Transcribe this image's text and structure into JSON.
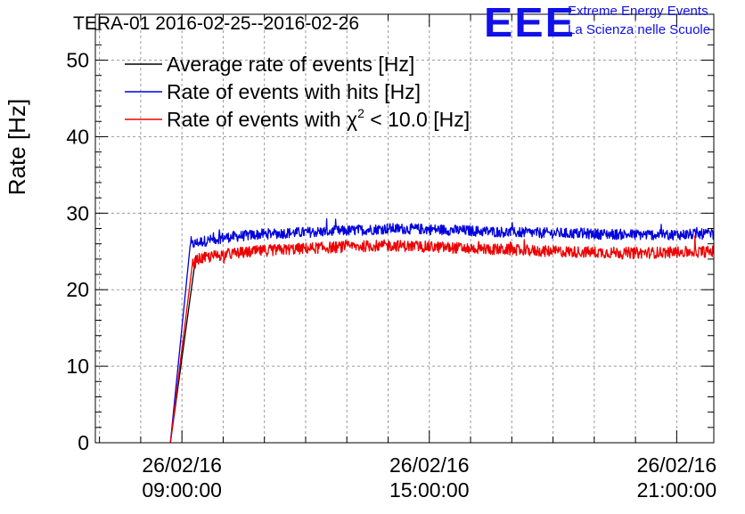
{
  "chart_data": {
    "type": "line",
    "title": "TERA-01 2016-02-25--2016-02-26",
    "ylabel": "Rate [Hz]",
    "xlabel": "",
    "xlim_hours": [
      6.9,
      21.9
    ],
    "ylim": [
      0,
      56
    ],
    "y_ticks": [
      0,
      10,
      20,
      30,
      40,
      50
    ],
    "y_tick_labels": [
      "0",
      "10",
      "20",
      "30",
      "40",
      "50"
    ],
    "x_ticks": [
      {
        "hours": 9,
        "date": "26/02/16",
        "time": "09:00:00"
      },
      {
        "hours": 15,
        "date": "26/02/16",
        "time": "15:00:00"
      },
      {
        "hours": 21,
        "date": "26/02/16",
        "time": "21:00:00"
      }
    ],
    "grid": true,
    "legend_position": "top-left",
    "series": [
      {
        "name": "Average rate of events [Hz]",
        "color": "#000000",
        "x_hours": [
          8.72,
          9.34
        ],
        "values": [
          0,
          24.5
        ]
      },
      {
        "name": "Rate of events with hits [Hz]",
        "color": "#0000dd",
        "x_hours": [
          8.72,
          9.2,
          9.4,
          10,
          11,
          12,
          13,
          14,
          15,
          16,
          17,
          18,
          19,
          20,
          21,
          21.9
        ],
        "values": [
          0,
          25.8,
          26.2,
          26.8,
          27.3,
          27.5,
          27.7,
          28.0,
          27.9,
          27.7,
          27.5,
          27.4,
          27.3,
          27.2,
          27.2,
          27.3
        ],
        "noise": 0.7
      },
      {
        "name": "Rate of events with χ² < 10.0 [Hz]",
        "color": "#ee0000",
        "x_hours": [
          8.72,
          9.25,
          9.4,
          10,
          11,
          12,
          13,
          14,
          15,
          16,
          17,
          18,
          19,
          20,
          21,
          21.9
        ],
        "values": [
          0,
          23.2,
          24.0,
          24.6,
          25.1,
          25.4,
          25.6,
          25.8,
          25.6,
          25.4,
          25.2,
          25.0,
          24.9,
          24.8,
          24.9,
          25.0
        ],
        "noise": 0.75
      }
    ],
    "legend_entries": [
      {
        "prefix": "Average rate of events [Hz]",
        "sup": "",
        "suffix": ""
      },
      {
        "prefix": "Rate of events with hits [Hz]",
        "sup": "",
        "suffix": ""
      },
      {
        "prefix": "Rate of events with χ",
        "sup": "2",
        "suffix": " < 10.0 [Hz]"
      }
    ]
  },
  "logo": {
    "mark": "EEE",
    "line1": "Extreme Energy Events",
    "line2": "La Scienza nelle Scuole"
  }
}
